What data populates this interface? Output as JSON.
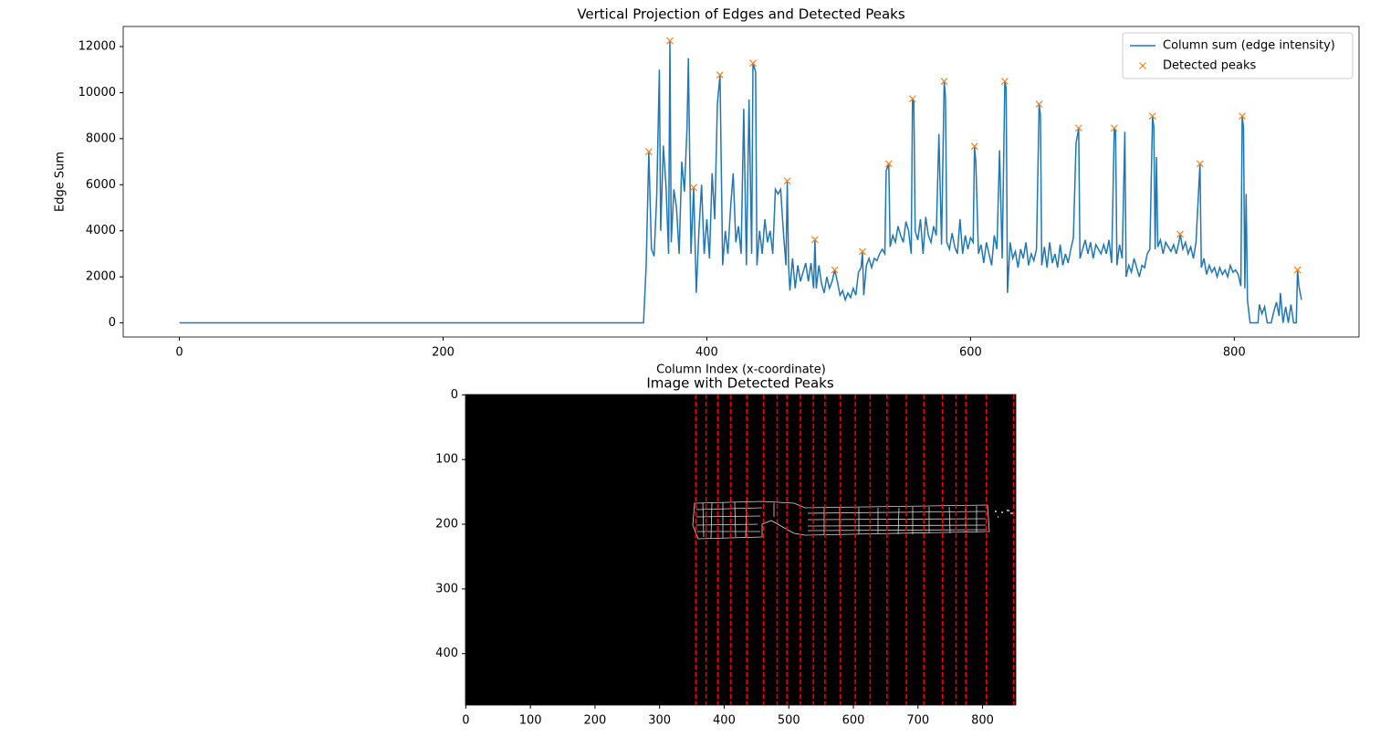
{
  "chart_data": [
    {
      "type": "line",
      "title": "Vertical Projection of Edges and Detected Peaks",
      "x_label": "Column Index (x-coordinate)",
      "y_label": "Edge Sum",
      "xlim": [
        -42.6,
        894.6
      ],
      "ylim": [
        -613,
        12873
      ],
      "xticks": [
        0,
        200,
        400,
        600,
        800
      ],
      "yticks": [
        0,
        2000,
        4000,
        6000,
        8000,
        10000,
        12000
      ],
      "legend": "upper right",
      "series": [
        {
          "name": "Column sum (edge intensity)",
          "color": "#1f77b4",
          "style": "line",
          "x": [
            0,
            352,
            354,
            356,
            358,
            360,
            362,
            364,
            365,
            367,
            369,
            371,
            372,
            373,
            375,
            377,
            379,
            381,
            383,
            385,
            386,
            388,
            390,
            392,
            394,
            396,
            398,
            400,
            402,
            404,
            406,
            408,
            410,
            412,
            414,
            416,
            418,
            420,
            422,
            424,
            426,
            428,
            430,
            432,
            434,
            435,
            437,
            438,
            440,
            442,
            444,
            446,
            448,
            450,
            452,
            454,
            456,
            458,
            460,
            461,
            462,
            463,
            465,
            467,
            469,
            471,
            473,
            475,
            477,
            479,
            481,
            482,
            483,
            485,
            487,
            489,
            491,
            493,
            495,
            497,
            499,
            501,
            503,
            505,
            507,
            509,
            511,
            513,
            515,
            517,
            518,
            519,
            521,
            523,
            525,
            527,
            529,
            531,
            533,
            535,
            536,
            538,
            539,
            541,
            543,
            545,
            547,
            549,
            551,
            553,
            555,
            556,
            557,
            558,
            560,
            562,
            564,
            566,
            568,
            570,
            572,
            574,
            576,
            578,
            580,
            581,
            582,
            584,
            586,
            588,
            590,
            592,
            594,
            596,
            598,
            600,
            602,
            603,
            604,
            606,
            608,
            610,
            612,
            614,
            616,
            618,
            620,
            622,
            624,
            626,
            627,
            628,
            630,
            632,
            634,
            636,
            638,
            640,
            642,
            644,
            646,
            648,
            650,
            652,
            653,
            654,
            656,
            658,
            660,
            662,
            664,
            666,
            668,
            670,
            672,
            674,
            676,
            678,
            680,
            682,
            683,
            685,
            687,
            689,
            691,
            693,
            695,
            697,
            699,
            701,
            703,
            705,
            707,
            709,
            710,
            711,
            713,
            715,
            717,
            718,
            720,
            722,
            724,
            726,
            728,
            730,
            732,
            734,
            736,
            738,
            739,
            740,
            741,
            742,
            744,
            746,
            748,
            750,
            752,
            754,
            756,
            758,
            759,
            761,
            763,
            765,
            767,
            769,
            771,
            773,
            774,
            775,
            777,
            779,
            781,
            783,
            785,
            787,
            789,
            791,
            793,
            795,
            797,
            799,
            801,
            803,
            805,
            806,
            807,
            808,
            809,
            810,
            812,
            818,
            819,
            821,
            823,
            825,
            828,
            830,
            832,
            834,
            835,
            837,
            839,
            841,
            843,
            845,
            847,
            848,
            849,
            851
          ],
          "values": [
            0,
            0,
            2500,
            7430,
            3200,
            2900,
            5500,
            11000,
            4000,
            7700,
            6000,
            3000,
            12250,
            3500,
            5800,
            5000,
            3000,
            7000,
            5700,
            8500,
            11500,
            3000,
            5880,
            1300,
            4000,
            6000,
            3000,
            4500,
            2800,
            6500,
            4500,
            9500,
            10770,
            2500,
            4000,
            3000,
            5000,
            6500,
            3500,
            4200,
            3000,
            9300,
            2500,
            9700,
            3000,
            11280,
            10900,
            2500,
            4000,
            3000,
            4500,
            3500,
            4000,
            3000,
            5800,
            5600,
            5800,
            4000,
            2500,
            6160,
            2500,
            1400,
            2800,
            1500,
            2500,
            1800,
            2200,
            2600,
            1800,
            2600,
            1500,
            3620,
            1500,
            2500,
            1700,
            1300,
            2000,
            1500,
            1800,
            2300,
            1800,
            1200,
            1400,
            1000,
            1300,
            1100,
            1500,
            1200,
            2200,
            2400,
            3100,
            1200,
            2500,
            2800,
            2400,
            2800,
            2700,
            3000,
            3200,
            3000,
            6600,
            6910,
            3300,
            3800,
            3500,
            4200,
            3800,
            3500,
            4400,
            4000,
            3000,
            9730,
            9600,
            4000,
            3600,
            4500,
            3000,
            4600,
            3800,
            3500,
            4200,
            3800,
            8200,
            3400,
            10490,
            9800,
            3500,
            3200,
            3900,
            3300,
            3000,
            4500,
            3000,
            3800,
            3200,
            3700,
            3500,
            7670,
            7000,
            3000,
            3400,
            2600,
            3500,
            3000,
            2500,
            3800,
            3200,
            7500,
            2800,
            10490,
            10200,
            1300,
            3500,
            2800,
            3100,
            2400,
            3200,
            2800,
            3500,
            2500,
            3000,
            2700,
            3200,
            9500,
            9000,
            2500,
            3300,
            2400,
            3500,
            2600,
            3000,
            2400,
            3400,
            2500,
            3000,
            2600,
            3200,
            3700,
            7800,
            8460,
            2800,
            3200,
            3600,
            3000,
            3500,
            2800,
            3400,
            3200,
            3000,
            3400,
            3000,
            3600,
            2600,
            8460,
            8300,
            2500,
            3400,
            2800,
            8300,
            2000,
            2500,
            2200,
            2800,
            2400,
            2000,
            2500,
            2400,
            3000,
            3200,
            8980,
            8500,
            3200,
            7200,
            3300,
            3600,
            3000,
            3500,
            3300,
            3100,
            3400,
            3000,
            3500,
            3850,
            3200,
            3500,
            3000,
            3300,
            2800,
            3500,
            5800,
            6910,
            2400,
            2800,
            2100,
            2500,
            2200,
            2400,
            2000,
            2400,
            2100,
            2300,
            2000,
            2500,
            2200,
            2300,
            2100,
            1600,
            8980,
            8500,
            1500,
            5600,
            1000,
            0,
            0,
            800,
            400,
            700,
            0,
            0,
            500,
            900,
            300,
            1300,
            0,
            700,
            0,
            800,
            0,
            0,
            2300,
            1600,
            1000
          ]
        },
        {
          "name": "Detected peaks",
          "color": "#ff7f0e",
          "style": "marker",
          "x": [
            356,
            372,
            390,
            410,
            435,
            461,
            482,
            497,
            518,
            538,
            556,
            580,
            603,
            626,
            652,
            682,
            709,
            738,
            759,
            774,
            806,
            848
          ],
          "values": [
            7430,
            12250,
            5880,
            10770,
            11280,
            6160,
            3620,
            2300,
            3100,
            6910,
            9730,
            10490,
            7670,
            10490,
            9500,
            8460,
            8460,
            8980,
            3850,
            6910,
            8980,
            2300
          ]
        }
      ]
    },
    {
      "type": "image",
      "title": "Image with Detected Peaks",
      "xlim": [
        -0.5,
        851.5
      ],
      "ylim": [
        479.5,
        -0.5
      ],
      "xticks": [
        0,
        100,
        200,
        300,
        400,
        500,
        600,
        700,
        800
      ],
      "yticks": [
        0,
        100,
        200,
        300,
        400
      ],
      "vlines": {
        "color": "red",
        "x": [
          356,
          372,
          390,
          410,
          435,
          461,
          482,
          497,
          518,
          538,
          556,
          580,
          603,
          626,
          652,
          682,
          709,
          738,
          759,
          774,
          806,
          848
        ]
      }
    }
  ]
}
